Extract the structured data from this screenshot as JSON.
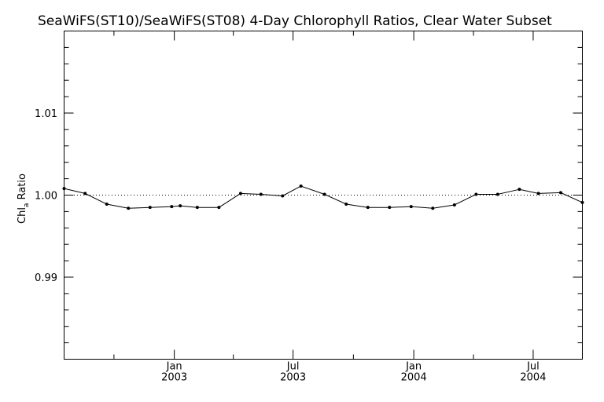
{
  "chart_data": {
    "type": "line",
    "title": "SeaWiFS(ST10)/SeaWiFS(ST08) 4-Day Chlorophyll Ratios, Clear Water Subset",
    "ylabel_main": "Chl",
    "ylabel_sub": "a",
    "ylabel_rest": " Ratio",
    "ylim": [
      0.98,
      1.02
    ],
    "yticks": [
      {
        "value": 0.99,
        "label": "0.99"
      },
      {
        "value": 1.0,
        "label": "1.00"
      },
      {
        "value": 1.01,
        "label": "1.01"
      }
    ],
    "xlim": [
      "2002-07-17",
      "2004-09-14"
    ],
    "xticks": [
      {
        "date": "2003-01-01",
        "month": "Jan",
        "year": "2003"
      },
      {
        "date": "2003-07-01",
        "month": "Jul",
        "year": "2003"
      },
      {
        "date": "2004-01-01",
        "month": "Jan",
        "year": "2004"
      },
      {
        "date": "2004-07-01",
        "month": "Jul",
        "year": "2004"
      }
    ],
    "reference_line": 1.0,
    "series": [
      {
        "points": [
          {
            "x": "2002-07-17",
            "y": 1.0008
          },
          {
            "x": "2002-08-18",
            "y": 1.0002
          },
          {
            "x": "2002-09-20",
            "y": 0.9989
          },
          {
            "x": "2002-10-23",
            "y": 0.9984
          },
          {
            "x": "2002-11-25",
            "y": 0.9985
          },
          {
            "x": "2002-12-28",
            "y": 0.9986
          },
          {
            "x": "2003-01-10",
            "y": 0.9987
          },
          {
            "x": "2003-02-05",
            "y": 0.9985
          },
          {
            "x": "2003-03-10",
            "y": 0.9985
          },
          {
            "x": "2003-04-12",
            "y": 1.0002
          },
          {
            "x": "2003-05-13",
            "y": 1.0001
          },
          {
            "x": "2003-06-15",
            "y": 0.9999
          },
          {
            "x": "2003-07-13",
            "y": 1.0011
          },
          {
            "x": "2003-08-18",
            "y": 1.0001
          },
          {
            "x": "2003-09-20",
            "y": 0.9989
          },
          {
            "x": "2003-10-23",
            "y": 0.9985
          },
          {
            "x": "2003-11-25",
            "y": 0.9985
          },
          {
            "x": "2003-12-28",
            "y": 0.9986
          },
          {
            "x": "2004-01-30",
            "y": 0.9984
          },
          {
            "x": "2004-03-03",
            "y": 0.9988
          },
          {
            "x": "2004-04-05",
            "y": 1.0001
          },
          {
            "x": "2004-05-08",
            "y": 1.0001
          },
          {
            "x": "2004-06-10",
            "y": 1.0007
          },
          {
            "x": "2004-07-09",
            "y": 1.0002
          },
          {
            "x": "2004-08-12",
            "y": 1.0003
          },
          {
            "x": "2004-09-14",
            "y": 0.9991
          }
        ]
      }
    ],
    "grid": false
  }
}
